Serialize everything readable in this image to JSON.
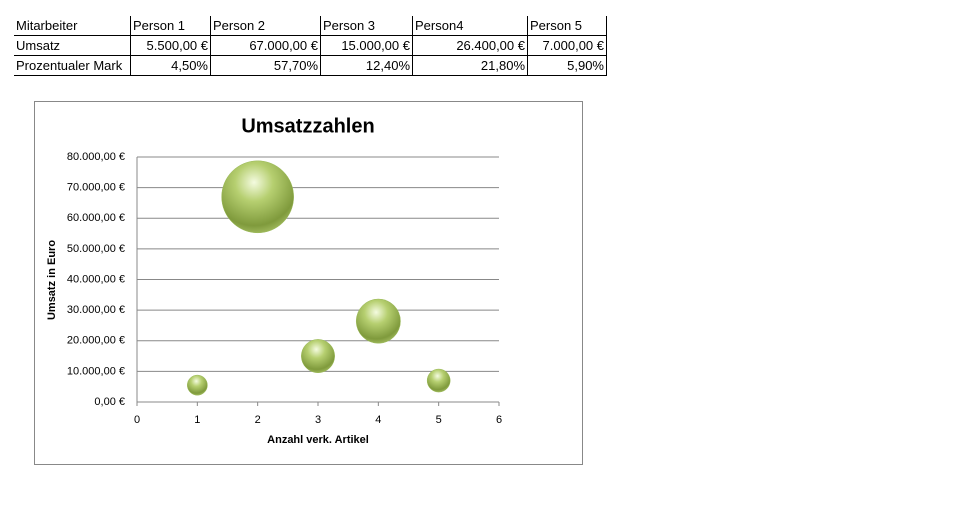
{
  "table": {
    "header": [
      "Mitarbeiter",
      "Person 1",
      "Person 2",
      "Person 3",
      "Person4",
      "Person 5"
    ],
    "rows": [
      [
        "Umsatz",
        "5.500,00 €",
        "67.000,00 €",
        "15.000,00 €",
        "26.400,00 €",
        "7.000,00 €"
      ],
      [
        "Prozentualer Mark",
        "4,50%",
        "57,70%",
        "12,40%",
        "21,80%",
        "5,90%"
      ]
    ]
  },
  "chart_data": {
    "type": "bubble",
    "title": "Umsatzzahlen",
    "x_label": "Anzahl verk. Artikel",
    "y_label": "Umsatz in Euro",
    "x": [
      1,
      2,
      3,
      4,
      5
    ],
    "values": [
      5500,
      67000,
      15000,
      26400,
      7000
    ],
    "sizes": [
      4.5,
      57.7,
      12.4,
      21.8,
      5.9
    ],
    "color": "#9bbb59",
    "xlim": [
      0,
      6
    ],
    "xticks": [
      0,
      1,
      2,
      3,
      4,
      5,
      6
    ],
    "ylim": [
      0,
      80000
    ],
    "yticks": [
      {
        "value": 0,
        "label": "0,00 €"
      },
      {
        "value": 10000,
        "label": "10.000,00 €"
      },
      {
        "value": 20000,
        "label": "20.000,00 €"
      },
      {
        "value": 30000,
        "label": "30.000,00 €"
      },
      {
        "value": 40000,
        "label": "40.000,00 €"
      },
      {
        "value": 50000,
        "label": "50.000,00 €"
      },
      {
        "value": 60000,
        "label": "60.000,00 €"
      },
      {
        "value": 70000,
        "label": "70.000,00 €"
      },
      {
        "value": 80000,
        "label": "80.000,00 €"
      }
    ],
    "grid": true
  }
}
